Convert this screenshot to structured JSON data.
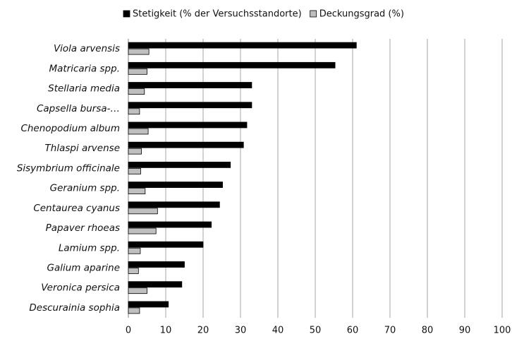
{
  "chart_data": {
    "type": "barh",
    "categories": [
      "Viola arvensis",
      "Matricaria spp.",
      "Stellaria media",
      "Capsella bursa-…",
      "Chenopodium album",
      "Thlaspi arvense",
      "Sisymbrium officinale",
      "Geranium spp.",
      "Centaurea cyanus",
      "Papaver rhoeas",
      "Lamium spp.",
      "Galium aparine",
      "Veronica persica",
      "Descurainia sophia"
    ],
    "series": [
      {
        "name": "Stetigkeit (% der Versuchsstandorte)",
        "color": "#000000",
        "values": [
          61,
          55.3,
          33,
          33,
          31.7,
          30.8,
          27.3,
          25.2,
          24.4,
          22.2,
          20,
          15,
          14.3,
          10.7
        ]
      },
      {
        "name": "Deckungsgrad (%)",
        "color": "#bfbfbf",
        "values": [
          5.5,
          5,
          4.3,
          3,
          5.3,
          3.5,
          3.3,
          4.5,
          7.8,
          7.4,
          3.2,
          2.7,
          5,
          3
        ]
      }
    ],
    "xlim": [
      0,
      100
    ],
    "xticks": [
      0,
      10,
      20,
      30,
      40,
      50,
      60,
      70,
      80,
      90,
      100
    ],
    "grid": true,
    "legend": "top"
  }
}
